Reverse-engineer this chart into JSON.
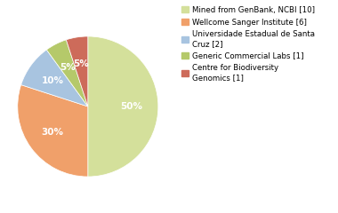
{
  "values": [
    50,
    30,
    10,
    5,
    5
  ],
  "colors": [
    "#d4e09b",
    "#f0a06a",
    "#a8c4e0",
    "#b5c96a",
    "#cd6b5a"
  ],
  "pct_labels": [
    "50%",
    "30%",
    "10%",
    "5%",
    "5%"
  ],
  "legend_labels": [
    "Mined from GenBank, NCBI [10]",
    "Wellcome Sanger Institute [6]",
    "Universidade Estadual de Santa\nCruz [2]",
    "Generic Commercial Labs [1]",
    "Centre for Biodiversity\nGenomics [1]"
  ],
  "startangle": 90,
  "background_color": "#ffffff",
  "pct_font_size": 7.5,
  "legend_font_size": 6.2
}
